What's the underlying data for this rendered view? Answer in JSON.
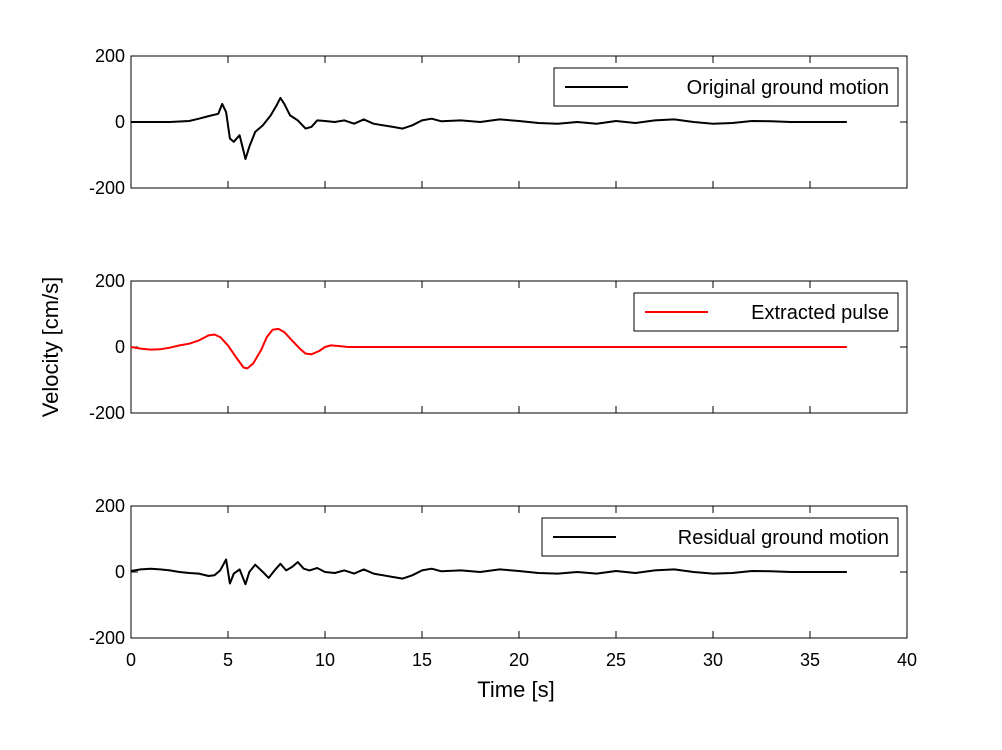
{
  "chart_data": {
    "type": "line",
    "ylabel": "Velocity [cm/s]",
    "xlabel": "Time [s]",
    "xlim": [
      0,
      40
    ],
    "x_ticks": [
      "0",
      "5",
      "10",
      "15",
      "20",
      "25",
      "30",
      "35",
      "40"
    ],
    "x_tick_values": [
      0,
      5,
      10,
      15,
      20,
      25,
      30,
      35,
      40
    ],
    "panels": [
      {
        "legend": "Original ground motion",
        "legend_position": "top-right",
        "color": "#000000",
        "ylim": [
          -200,
          200
        ],
        "y_ticks": [
          "200",
          "0",
          "-200"
        ],
        "y_tick_values": [
          200,
          0,
          -200
        ],
        "x": [
          0,
          2,
          3,
          3.5,
          4,
          4.5,
          4.7,
          4.9,
          5.1,
          5.3,
          5.6,
          5.9,
          6.1,
          6.4,
          6.8,
          7.2,
          7.5,
          7.7,
          7.9,
          8.2,
          8.6,
          9.0,
          9.3,
          9.6,
          10.0,
          10.5,
          11,
          11.5,
          12,
          12.5,
          13,
          13.5,
          14,
          14.5,
          15,
          15.5,
          16,
          17,
          18,
          19,
          20,
          21,
          22,
          23,
          24,
          25,
          26,
          27,
          28,
          29,
          30,
          31,
          32,
          33,
          34,
          35,
          36,
          36.9
        ],
        "y": [
          0,
          0,
          3,
          10,
          18,
          25,
          55,
          30,
          -50,
          -60,
          -40,
          -112,
          -75,
          -30,
          -10,
          20,
          50,
          73,
          55,
          20,
          5,
          -20,
          -15,
          5,
          3,
          0,
          5,
          -5,
          8,
          -5,
          -10,
          -15,
          -20,
          -10,
          5,
          10,
          2,
          5,
          0,
          8,
          3,
          -3,
          -5,
          0,
          -5,
          3,
          -3,
          5,
          8,
          0,
          -5,
          -3,
          3,
          2,
          0,
          0,
          0,
          0
        ]
      },
      {
        "legend": "Extracted pulse",
        "legend_position": "top-right",
        "color": "#ff0000",
        "ylim": [
          -200,
          200
        ],
        "y_ticks": [
          "200",
          "0",
          "-200"
        ],
        "y_tick_values": [
          200,
          0,
          -200
        ],
        "x": [
          0,
          0.5,
          1,
          1.5,
          2,
          2.5,
          3,
          3.5,
          4,
          4.3,
          4.6,
          5.0,
          5.4,
          5.8,
          6.0,
          6.3,
          6.7,
          7.0,
          7.3,
          7.6,
          7.9,
          8.3,
          8.7,
          9.0,
          9.3,
          9.7,
          10.0,
          10.3,
          10.7,
          11.2,
          12,
          14,
          17,
          20,
          25,
          30,
          35,
          36.9
        ],
        "y": [
          0,
          -5,
          -8,
          -7,
          -2,
          5,
          10,
          20,
          35,
          38,
          30,
          5,
          -30,
          -62,
          -65,
          -50,
          -10,
          30,
          52,
          55,
          45,
          20,
          -5,
          -20,
          -22,
          -12,
          0,
          5,
          3,
          0,
          0,
          0,
          0,
          0,
          0,
          0,
          0,
          0
        ]
      },
      {
        "legend": "Residual ground motion",
        "legend_position": "top-right",
        "color": "#000000",
        "ylim": [
          -200,
          200
        ],
        "y_ticks": [
          "200",
          "0",
          "-200"
        ],
        "y_tick_values": [
          200,
          0,
          -200
        ],
        "x": [
          0,
          0.5,
          1,
          1.5,
          2,
          2.5,
          3,
          3.5,
          4,
          4.3,
          4.6,
          4.9,
          5.1,
          5.3,
          5.6,
          5.9,
          6.1,
          6.4,
          6.8,
          7.1,
          7.4,
          7.7,
          8.0,
          8.3,
          8.6,
          8.9,
          9.2,
          9.6,
          10.0,
          10.5,
          11,
          11.5,
          12,
          12.5,
          13,
          13.5,
          14,
          14.5,
          15,
          15.5,
          16,
          17,
          18,
          19,
          20,
          21,
          22,
          23,
          24,
          25,
          26,
          27,
          28,
          29,
          30,
          31,
          32,
          33,
          34,
          35,
          36,
          36.9
        ],
        "y": [
          3,
          8,
          10,
          8,
          5,
          0,
          -3,
          -5,
          -12,
          -10,
          5,
          38,
          -35,
          -5,
          8,
          -37,
          0,
          22,
          0,
          -18,
          5,
          25,
          5,
          15,
          30,
          10,
          5,
          12,
          0,
          -3,
          5,
          -5,
          8,
          -5,
          -10,
          -15,
          -20,
          -10,
          5,
          10,
          2,
          5,
          0,
          8,
          3,
          -3,
          -5,
          0,
          -5,
          3,
          -3,
          5,
          8,
          0,
          -5,
          -3,
          3,
          2,
          0,
          0,
          0,
          0
        ]
      }
    ]
  }
}
